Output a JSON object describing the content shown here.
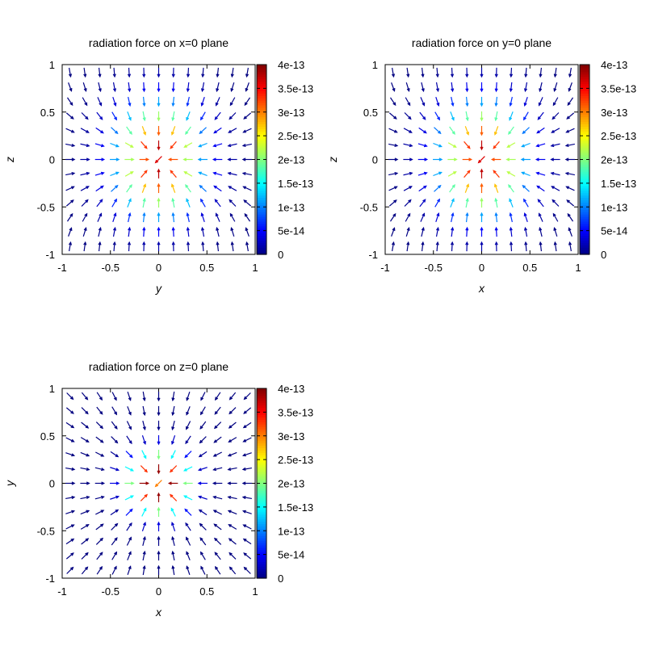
{
  "chart_data": [
    {
      "type": "vector-field",
      "title": "radiation force on x=0 plane",
      "xlabel": "y",
      "ylabel": "z",
      "xlim": [
        -1,
        1
      ],
      "ylim": [
        -1,
        1
      ],
      "xticks": [
        "-1",
        "-0.5",
        "0",
        "0.5",
        "1"
      ],
      "yticks": [
        "-1",
        "-0.5",
        "0",
        "0.5",
        "1"
      ],
      "grid": false,
      "colorbar": {
        "range": [
          0,
          4e-13
        ],
        "ticks": [
          "0",
          "5e-14",
          "1e-13",
          "1.5e-13",
          "2e-13",
          "2.5e-13",
          "3e-13",
          "3.5e-13",
          "4e-13"
        ],
        "colormap": "jet"
      },
      "field": "axial"
    },
    {
      "type": "vector-field",
      "title": "radiation force on y=0 plane",
      "xlabel": "x",
      "ylabel": "z",
      "xlim": [
        -1,
        1
      ],
      "ylim": [
        -1,
        1
      ],
      "xticks": [
        "-1",
        "-0.5",
        "0",
        "0.5",
        "1"
      ],
      "yticks": [
        "-1",
        "-0.5",
        "0",
        "0.5",
        "1"
      ],
      "grid": false,
      "colorbar": {
        "range": [
          0,
          4e-13
        ],
        "ticks": [
          "0",
          "5e-14",
          "1e-13",
          "1.5e-13",
          "2e-13",
          "2.5e-13",
          "3e-13",
          "3.5e-13",
          "4e-13"
        ],
        "colormap": "jet"
      },
      "field": "axial"
    },
    {
      "type": "vector-field",
      "title": "radiation force on z=0 plane",
      "xlabel": "x",
      "ylabel": "y",
      "xlim": [
        -1,
        1
      ],
      "ylim": [
        -1,
        1
      ],
      "xticks": [
        "-1",
        "-0.5",
        "0",
        "0.5",
        "1"
      ],
      "yticks": [
        "-1",
        "-0.5",
        "0",
        "0.5",
        "1"
      ],
      "grid": false,
      "colorbar": {
        "range": [
          0,
          4e-13
        ],
        "ticks": [
          "0",
          "5e-14",
          "1e-13",
          "1.5e-13",
          "2e-13",
          "2.5e-13",
          "3e-13",
          "3.5e-13",
          "4e-13"
        ],
        "colormap": "jet"
      },
      "field": "radial"
    }
  ]
}
